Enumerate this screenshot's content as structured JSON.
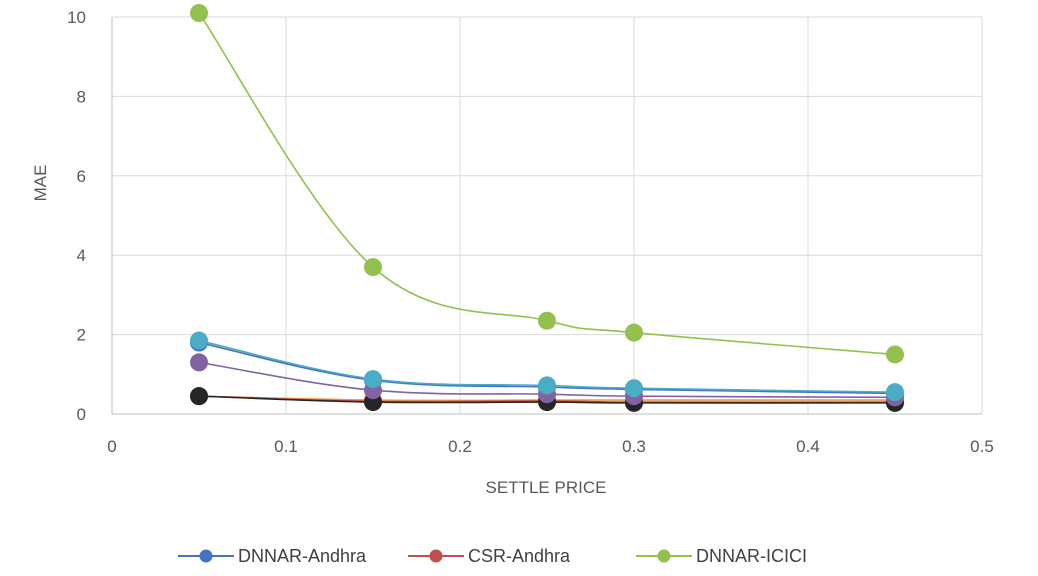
{
  "chart_data": {
    "type": "line",
    "xlabel": "SETTLE PRICE",
    "ylabel": "MAE",
    "xlim": [
      0,
      0.5
    ],
    "ylim": [
      0,
      10
    ],
    "xticks": [
      0,
      0.1,
      0.2,
      0.3,
      0.4,
      0.5
    ],
    "yticks": [
      0,
      2,
      4,
      6,
      8,
      10
    ],
    "xtick_labels": [
      "0",
      "0.1",
      "0.2",
      "0.3",
      "0.4",
      "0.5"
    ],
    "ytick_labels": [
      "0",
      "2",
      "4",
      "6",
      "8",
      "10"
    ],
    "grid": true,
    "legend_position": "bottom",
    "x": [
      0.05,
      0.15,
      0.25,
      0.3,
      0.45
    ],
    "series": [
      {
        "name": "DNNAR-ICICI",
        "color": "#92c14e",
        "values": [
          10.1,
          3.7,
          2.35,
          2.05,
          1.5
        ],
        "legend": true
      },
      {
        "name": "",
        "color": "#4bacc6",
        "values": [
          1.85,
          0.88,
          0.72,
          0.65,
          0.55
        ],
        "legend": false
      },
      {
        "name": "",
        "color": "#8064a2",
        "values": [
          1.3,
          0.6,
          0.5,
          0.45,
          0.42
        ],
        "legend": false
      },
      {
        "name": "DNNAR-Andhra",
        "color": "#4472c4",
        "values": [
          1.8,
          0.85,
          0.68,
          0.62,
          0.52
        ],
        "legend": true
      },
      {
        "name": "",
        "color": "#262626",
        "values": [
          0.45,
          0.3,
          0.3,
          0.28,
          0.28
        ],
        "legend": false
      },
      {
        "name": "CSR-Andhra",
        "color": "#c0504d",
        "values": [
          0.45,
          0.32,
          0.33,
          0.3,
          0.3
        ],
        "legend": true
      },
      {
        "name": "",
        "color": "#f79646",
        "values": [
          0.45,
          0.35,
          0.35,
          0.35,
          0.35
        ],
        "legend": false
      }
    ],
    "legend_order": [
      "DNNAR-Andhra",
      "CSR-Andhra",
      "DNNAR-ICICI"
    ]
  }
}
